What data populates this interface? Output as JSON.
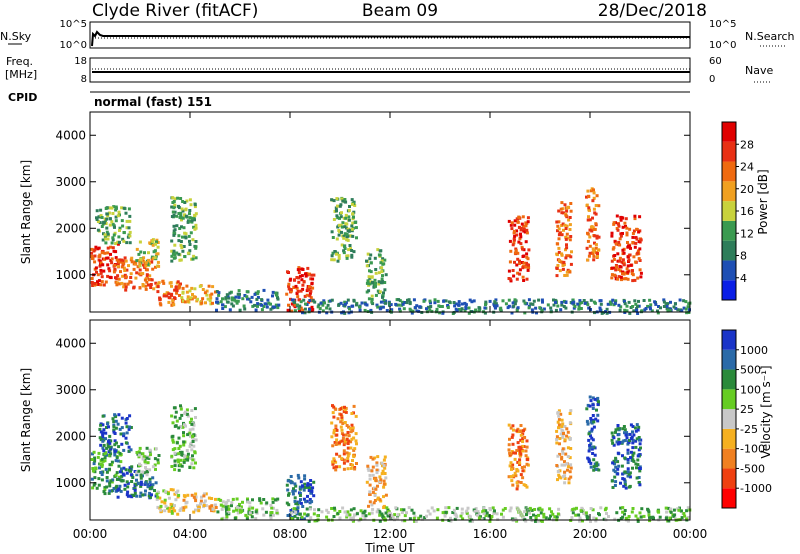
{
  "header": {
    "station": "Clyde River (fitACF)",
    "beam": "Beam 09",
    "date": "28/Dec/2018"
  },
  "ctrl": {
    "nsky_label": "N.Sky",
    "nsearch_label": "N.Search",
    "nsky_top": "10^5",
    "nsky_bottom": "10^0",
    "nsearch_top": "10^5",
    "nsearch_bottom": "10^0",
    "freq_label_1": "Freq.",
    "freq_label_2": "[MHz]",
    "freq_top": "18",
    "freq_bottom": "8",
    "nave_label": "Nave",
    "nave_top": "60",
    "nave_bottom": "0",
    "cpid_label": "CPID",
    "cpid_value": "normal (fast) 151"
  },
  "colors": {
    "power_scale": [
      "#0a1ee6",
      "#1e4fb4",
      "#2e7d5a",
      "#3a9a50",
      "#c8d23c",
      "#f0a020",
      "#ef6a10",
      "#e83014",
      "#e00000"
    ],
    "velocity_scale": [
      "#ff0000",
      "#ef4010",
      "#f08020",
      "#f5b020",
      "#c8c8c8",
      "#66cc22",
      "#2a8a3a",
      "#2a6aa8",
      "#1a34c8"
    ]
  },
  "chart_data": [
    {
      "type": "heatmap",
      "name": "power",
      "ylabel": "Slant Range [km]",
      "xlabel": "",
      "x_ticks": [
        "00:00",
        "04:00",
        "08:00",
        "12:00",
        "16:00",
        "20:00",
        "00:00"
      ],
      "y_ticks": [
        "1000",
        "2000",
        "3000",
        "4000"
      ],
      "ylim": [
        200,
        4500
      ],
      "x_range_hours": [
        0,
        24
      ],
      "colorbar": {
        "label": "Power [dB]",
        "ticks": [
          "4",
          "8",
          "12",
          "16",
          "20",
          "24",
          "28"
        ],
        "range": [
          0,
          32
        ]
      },
      "echo_regions": [
        {
          "t": [
            0.0,
            1.1
          ],
          "r": [
            800,
            1700
          ],
          "level": 26
        },
        {
          "t": [
            0.2,
            1.6
          ],
          "r": [
            1700,
            2500
          ],
          "level": 12
        },
        {
          "t": [
            1.0,
            2.6
          ],
          "r": [
            700,
            1400
          ],
          "level": 24
        },
        {
          "t": [
            1.8,
            2.7
          ],
          "r": [
            1200,
            1800
          ],
          "level": 14
        },
        {
          "t": [
            2.6,
            3.6
          ],
          "r": [
            350,
            900
          ],
          "level": 22
        },
        {
          "t": [
            3.2,
            4.2
          ],
          "r": [
            1300,
            2700
          ],
          "level": 10
        },
        {
          "t": [
            3.6,
            5.0
          ],
          "r": [
            400,
            800
          ],
          "level": 20
        },
        {
          "t": [
            5.0,
            7.5
          ],
          "r": [
            250,
            700
          ],
          "level": 8
        },
        {
          "t": [
            7.8,
            8.9
          ],
          "r": [
            250,
            1200
          ],
          "level": 26
        },
        {
          "t": [
            9.6,
            10.6
          ],
          "r": [
            1300,
            2700
          ],
          "level": 12
        },
        {
          "t": [
            11.0,
            11.8
          ],
          "r": [
            500,
            1600
          ],
          "level": 10
        },
        {
          "t": [
            16.7,
            17.5
          ],
          "r": [
            900,
            2300
          ],
          "level": 26
        },
        {
          "t": [
            18.6,
            19.2
          ],
          "r": [
            1000,
            2600
          ],
          "level": 24
        },
        {
          "t": [
            19.8,
            20.3
          ],
          "r": [
            1300,
            2900
          ],
          "level": 22
        },
        {
          "t": [
            20.8,
            22.0
          ],
          "r": [
            900,
            2300
          ],
          "level": 26
        },
        {
          "t": [
            8.0,
            24.0
          ],
          "r": [
            200,
            500
          ],
          "level": 6
        }
      ]
    },
    {
      "type": "heatmap",
      "name": "velocity",
      "ylabel": "Slant Range [km]",
      "xlabel": "Time UT",
      "x_ticks": [
        "00:00",
        "04:00",
        "08:00",
        "12:00",
        "16:00",
        "20:00",
        "00:00"
      ],
      "y_ticks": [
        "1000",
        "2000",
        "3000",
        "4000"
      ],
      "ylim": [
        200,
        4500
      ],
      "x_range_hours": [
        0,
        24
      ],
      "colorbar": {
        "label": "Velocity [m s⁻¹]",
        "ticks": [
          "-1000",
          "-500",
          "-100",
          "-25",
          "25",
          "100",
          "500",
          "1000"
        ]
      },
      "echo_regions": [
        {
          "t": [
            0.0,
            1.2
          ],
          "r": [
            800,
            1700
          ],
          "level": 6
        },
        {
          "t": [
            0.3,
            1.6
          ],
          "r": [
            1700,
            2500
          ],
          "level": 7
        },
        {
          "t": [
            1.0,
            2.6
          ],
          "r": [
            700,
            1400
          ],
          "level": 7
        },
        {
          "t": [
            1.8,
            2.7
          ],
          "r": [
            1200,
            1800
          ],
          "level": 5
        },
        {
          "t": [
            2.6,
            3.6
          ],
          "r": [
            350,
            900
          ],
          "level": 4
        },
        {
          "t": [
            3.2,
            4.2
          ],
          "r": [
            1300,
            2700
          ],
          "level": 5
        },
        {
          "t": [
            3.6,
            5.0
          ],
          "r": [
            400,
            800
          ],
          "level": 3
        },
        {
          "t": [
            5.0,
            7.5
          ],
          "r": [
            250,
            700
          ],
          "level": 5
        },
        {
          "t": [
            7.8,
            8.9
          ],
          "r": [
            250,
            1200
          ],
          "level": 7
        },
        {
          "t": [
            9.6,
            10.6
          ],
          "r": [
            1300,
            2700
          ],
          "level": 2
        },
        {
          "t": [
            11.0,
            11.8
          ],
          "r": [
            500,
            1600
          ],
          "level": 3
        },
        {
          "t": [
            16.7,
            17.5
          ],
          "r": [
            900,
            2300
          ],
          "level": 2
        },
        {
          "t": [
            18.6,
            19.2
          ],
          "r": [
            1000,
            2600
          ],
          "level": 3
        },
        {
          "t": [
            19.8,
            20.3
          ],
          "r": [
            1300,
            2900
          ],
          "level": 7
        },
        {
          "t": [
            20.8,
            22.0
          ],
          "r": [
            900,
            2300
          ],
          "level": 7
        },
        {
          "t": [
            8.0,
            24.0
          ],
          "r": [
            200,
            500
          ],
          "level": 5
        }
      ]
    }
  ]
}
